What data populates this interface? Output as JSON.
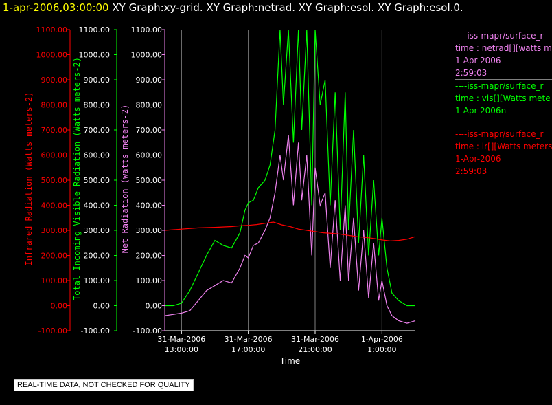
{
  "header": {
    "timestamp": "1-apr-2006,03:00:00",
    "graphs": " XY Graph:xy-grid.  XY Graph:netrad.  XY Graph:esol.  XY Graph:esol.0."
  },
  "legend": [
    {
      "line1": "----iss-mapr/surface_r",
      "line2": "time : netrad[][watts me",
      "line3": "1-Apr-2006",
      "line4": "2:59:03",
      "color": "#ee82ee"
    },
    {
      "line1": "----iss-mapr/surface_r",
      "line2": "time : vis[][Watts mete",
      "line3": "1-Apr-2006n",
      "line4": "",
      "color": "#00ff00"
    },
    {
      "line1": "----iss-mapr/surface_r",
      "line2": "time : ir[][Watts meters",
      "line3": "1-Apr-2006",
      "line4": "2:59:03",
      "color": "#ff0000"
    }
  ],
  "notice": "REAL-TIME DATA, NOT CHECKED FOR QUALITY",
  "chart_data": {
    "type": "line",
    "xlabel": "Time",
    "x_ticks": [
      {
        "line1": "31-Mar-2006",
        "line2": "13:00:00",
        "hour": 13
      },
      {
        "line1": "31-Mar-2006",
        "line2": "17:00:00",
        "hour": 17
      },
      {
        "line1": "31-Mar-2006",
        "line2": "21:00:00",
        "hour": 21
      },
      {
        "line1": "1-Apr-2006",
        "line2": "1:00:00",
        "hour": 25
      }
    ],
    "xlim_hours": [
      12.0,
      27.0
    ],
    "ylim": [
      -100,
      1100
    ],
    "y_ticks": [
      "-100.00",
      "0.00",
      "100.00",
      "200.00",
      "300.00",
      "400.00",
      "500.00",
      "600.00",
      "700.00",
      "800.00",
      "900.00",
      "1000.00",
      "1100.00"
    ],
    "grid": true,
    "axes": [
      {
        "label": "Infrared Radiation (Watts meters-2)",
        "color": "#ff0000"
      },
      {
        "label": "Total Incoming Visible Radiation (Watts meters-2)",
        "color": "#00ff00"
      },
      {
        "label": "Net Radiation (watts meters-2)",
        "color": "#ee82ee"
      }
    ],
    "series": [
      {
        "name": "ir",
        "color": "#ff0000",
        "x": [
          12.0,
          13.0,
          14.0,
          15.0,
          16.0,
          16.5,
          17.0,
          17.5,
          18.0,
          18.5,
          19.0,
          19.5,
          20.0,
          20.5,
          21.0,
          21.5,
          22.0,
          22.5,
          23.0,
          23.5,
          24.0,
          24.5,
          25.0,
          25.5,
          26.0,
          26.5,
          27.0
        ],
        "y": [
          300,
          305,
          310,
          312,
          315,
          318,
          320,
          323,
          328,
          333,
          322,
          315,
          305,
          300,
          295,
          290,
          288,
          285,
          280,
          275,
          272,
          268,
          262,
          258,
          260,
          265,
          275
        ]
      },
      {
        "name": "vis",
        "color": "#00ff00",
        "x": [
          12.0,
          12.5,
          13.0,
          13.5,
          14.0,
          14.5,
          15.0,
          15.5,
          16.0,
          16.5,
          16.8,
          17.0,
          17.3,
          17.6,
          18.0,
          18.3,
          18.6,
          18.9,
          19.1,
          19.4,
          19.7,
          20.0,
          20.2,
          20.5,
          20.8,
          21.0,
          21.3,
          21.6,
          21.9,
          22.2,
          22.5,
          22.8,
          23.0,
          23.3,
          23.6,
          23.9,
          24.2,
          24.5,
          24.8,
          25.0,
          25.3,
          25.6,
          26.0,
          26.5,
          27.0
        ],
        "y": [
          0,
          0,
          10,
          60,
          130,
          200,
          260,
          240,
          230,
          290,
          380,
          410,
          420,
          470,
          500,
          560,
          700,
          1100,
          800,
          1100,
          650,
          1100,
          700,
          1100,
          400,
          1100,
          800,
          900,
          400,
          850,
          300,
          850,
          300,
          700,
          250,
          600,
          200,
          500,
          200,
          350,
          150,
          50,
          20,
          0,
          0
        ]
      },
      {
        "name": "netrad",
        "color": "#ee82ee",
        "x": [
          12.0,
          12.5,
          13.0,
          13.5,
          14.0,
          14.5,
          15.0,
          15.5,
          16.0,
          16.5,
          16.8,
          17.0,
          17.3,
          17.6,
          18.0,
          18.3,
          18.6,
          18.9,
          19.1,
          19.4,
          19.7,
          20.0,
          20.2,
          20.5,
          20.8,
          21.0,
          21.3,
          21.6,
          21.9,
          22.2,
          22.5,
          22.8,
          23.0,
          23.3,
          23.6,
          23.9,
          24.2,
          24.5,
          24.8,
          25.0,
          25.3,
          25.6,
          26.0,
          26.5,
          27.0
        ],
        "y": [
          -40,
          -35,
          -30,
          -20,
          20,
          60,
          80,
          100,
          90,
          150,
          200,
          190,
          240,
          250,
          300,
          350,
          450,
          600,
          500,
          680,
          400,
          650,
          420,
          600,
          200,
          550,
          400,
          450,
          150,
          420,
          100,
          400,
          100,
          350,
          60,
          300,
          30,
          250,
          20,
          100,
          0,
          -40,
          -60,
          -70,
          -60
        ]
      }
    ]
  }
}
